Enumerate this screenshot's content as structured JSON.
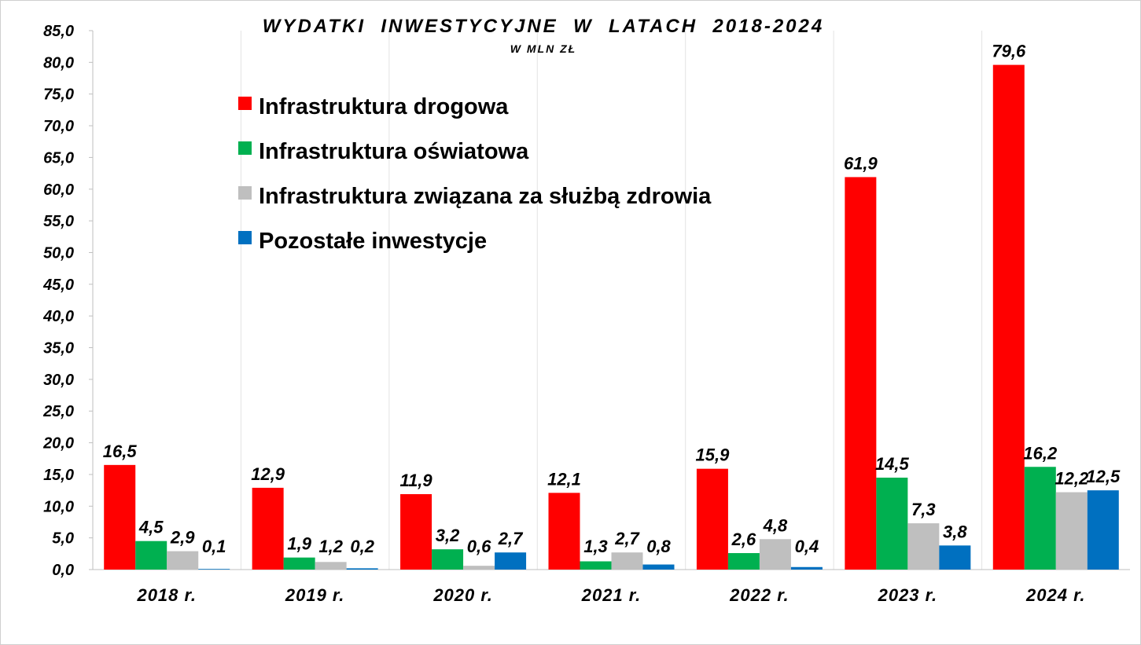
{
  "chart_data": {
    "type": "bar",
    "title": "WYDATKI  INWESTYCYJNE  W  LATACH  2018-2024",
    "subtitle": "W MLN ZŁ",
    "categories": [
      "2018 r.",
      "2019 r.",
      "2020 r.",
      "2021 r.",
      "2022 r.",
      "2023 r.",
      "2024 r."
    ],
    "series": [
      {
        "name": "Infrastruktura drogowa",
        "color": "#ff0000",
        "values": [
          16.5,
          12.9,
          11.9,
          12.1,
          15.9,
          61.9,
          79.6
        ],
        "labels": [
          "16,5",
          "12,9",
          "11,9",
          "12,1",
          "15,9",
          "61,9",
          "79,6"
        ]
      },
      {
        "name": "Infrastruktura oświatowa",
        "color": "#00b050",
        "values": [
          4.5,
          1.9,
          3.2,
          1.3,
          2.6,
          14.5,
          16.2
        ],
        "labels": [
          "4,5",
          "1,9",
          "3,2",
          "1,3",
          "2,6",
          "14,5",
          "16,2"
        ]
      },
      {
        "name": "Infrastruktura związana za służbą zdrowia",
        "color": "#bfbfbf",
        "values": [
          2.9,
          1.2,
          0.6,
          2.7,
          4.8,
          7.3,
          12.2
        ],
        "labels": [
          "2,9",
          "1,2",
          "0,6",
          "2,7",
          "4,8",
          "7,3",
          "12,2"
        ]
      },
      {
        "name": "Pozostałe inwestycje",
        "color": "#0070c0",
        "values": [
          0.1,
          0.2,
          2.7,
          0.8,
          0.4,
          3.8,
          12.5
        ],
        "labels": [
          "0,1",
          "0,2",
          "2,7",
          "0,8",
          "0,4",
          "3,8",
          "12,5"
        ]
      }
    ],
    "ylim": [
      0,
      85
    ],
    "yticks": [
      0,
      5,
      10,
      15,
      20,
      25,
      30,
      35,
      40,
      45,
      50,
      55,
      60,
      65,
      70,
      75,
      80,
      85
    ],
    "ytick_labels": [
      "0,0",
      "5,0",
      "10,0",
      "15,0",
      "20,0",
      "25,0",
      "30,0",
      "35,0",
      "40,0",
      "45,0",
      "50,0",
      "55,0",
      "60,0",
      "65,0",
      "70,0",
      "75,0",
      "80,0",
      "85,0"
    ],
    "xlabel": "",
    "ylabel": "",
    "grid": "vertical separators between categories",
    "legend_position": "upper-left inside plot"
  }
}
